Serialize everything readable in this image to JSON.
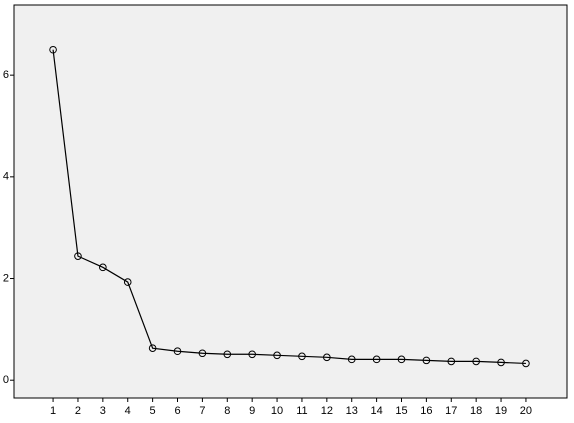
{
  "chart_data": {
    "type": "line",
    "x": [
      1,
      2,
      3,
      4,
      5,
      6,
      7,
      8,
      9,
      10,
      11,
      12,
      13,
      14,
      15,
      16,
      17,
      18,
      19,
      20
    ],
    "series": [
      {
        "color": "#000000",
        "values": [
          6.5,
          2.44,
          2.22,
          1.93,
          0.63,
          0.57,
          0.53,
          0.51,
          0.51,
          0.49,
          0.47,
          0.45,
          0.41,
          0.41,
          0.41,
          0.39,
          0.37,
          0.37,
          0.35,
          0.33
        ]
      }
    ],
    "xlim": [
      -0.57,
      21.65
    ],
    "xticks": [
      1,
      2,
      3,
      4,
      5,
      6,
      7,
      8,
      9,
      10,
      11,
      12,
      13,
      14,
      15,
      16,
      17,
      18,
      19,
      20
    ],
    "ylim": [
      -0.35,
      7.38
    ],
    "yticks": [
      0,
      2,
      4,
      6
    ],
    "grid": false,
    "marker": "open-circle",
    "plot_background": "#f0f0f0"
  }
}
